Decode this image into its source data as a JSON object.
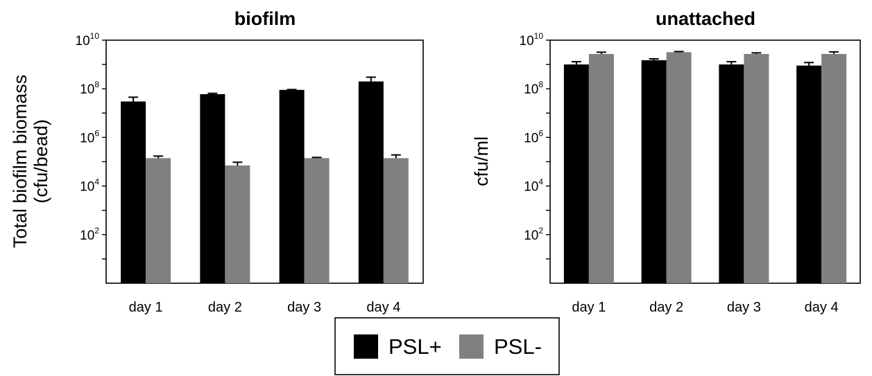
{
  "chart_data": [
    {
      "type": "bar",
      "title": "biofilm",
      "ylabel_line1": "Total biofilm biomass",
      "ylabel_line2": "(cfu/bead)",
      "xlabel": "",
      "yscale": "log",
      "ylim": [
        1,
        10000000000
      ],
      "ytick_exponents": [
        2,
        4,
        6,
        8,
        10
      ],
      "ytick_base": "10",
      "categories": [
        "day 1",
        "day 2",
        "day 3",
        "day 4"
      ],
      "series": [
        {
          "name": "PSL+",
          "color": "#000000",
          "values": [
            30000000,
            60000000,
            90000000,
            200000000
          ],
          "errors": [
            15000000,
            5000000,
            3000000,
            100000000
          ]
        },
        {
          "name": "PSL-",
          "color": "#808080",
          "values": [
            140000,
            70000,
            140000,
            140000
          ],
          "errors": [
            30000,
            25000,
            10000,
            50000
          ]
        }
      ]
    },
    {
      "type": "bar",
      "title": "unattached",
      "ylabel_line1": "cfu/ml",
      "ylabel_line2": "",
      "xlabel": "",
      "yscale": "log",
      "ylim": [
        1,
        10000000000
      ],
      "ytick_exponents": [
        2,
        4,
        6,
        8,
        10
      ],
      "ytick_base": "10",
      "categories": [
        "day 1",
        "day 2",
        "day 3",
        "day 4"
      ],
      "series": [
        {
          "name": "PSL+",
          "color": "#000000",
          "values": [
            1000000000,
            1500000000,
            1000000000,
            900000000
          ],
          "errors": [
            300000000,
            200000000,
            300000000,
            300000000
          ]
        },
        {
          "name": "PSL-",
          "color": "#808080",
          "values": [
            2700000000,
            3200000000,
            2700000000,
            2700000000
          ],
          "errors": [
            500000000,
            200000000,
            300000000,
            600000000
          ]
        }
      ]
    }
  ],
  "legend": {
    "placement": "bottom-center",
    "items": [
      {
        "label": "PSL+",
        "color": "#000000"
      },
      {
        "label": "PSL-",
        "color": "#808080"
      }
    ]
  }
}
